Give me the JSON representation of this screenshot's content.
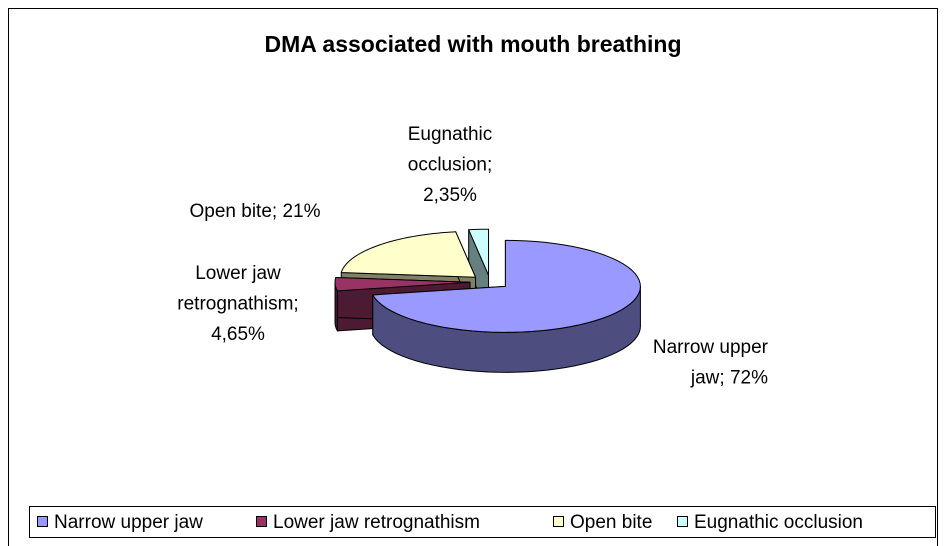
{
  "chart_data": {
    "type": "pie",
    "title": "DMA associated with mouth breathing",
    "categories": [
      "Narrow upper jaw",
      "Lower jaw retrognathism",
      "Open bite",
      "Eugnathic occlusion"
    ],
    "values": [
      72,
      4.65,
      21,
      2.35
    ],
    "value_labels": [
      "Narrow upper jaw; 72%",
      "Lower jaw retrognathism; 4,65%",
      "Open bite; 21%",
      "Eugnathic occlusion; 2,35%"
    ],
    "colors": [
      "#9999ff",
      "#993366",
      "#ffffcc",
      "#ccffff"
    ],
    "legend": "bottom"
  }
}
